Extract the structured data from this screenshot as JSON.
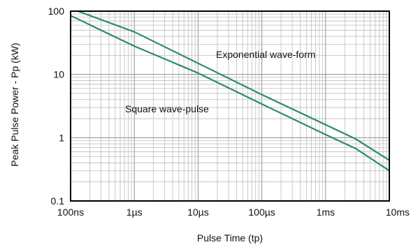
{
  "chart_data": {
    "type": "line",
    "title": "",
    "xlabel": "Pulse Time (tp)",
    "ylabel": "Peak Pulse Power - Pp (kW)",
    "x_scale": "log",
    "y_scale": "log",
    "x_unit": "seconds",
    "y_unit": "kW",
    "xlim": [
      1e-07,
      0.01
    ],
    "ylim": [
      0.1,
      100
    ],
    "grid": true,
    "x_ticks": [
      {
        "value": 1e-07,
        "label": "100ns"
      },
      {
        "value": 1e-06,
        "label": "1µs"
      },
      {
        "value": 1e-05,
        "label": "10µs"
      },
      {
        "value": 0.0001,
        "label": "100µs"
      },
      {
        "value": 0.001,
        "label": "1ms"
      },
      {
        "value": 0.01,
        "label": "10ms"
      }
    ],
    "y_ticks": [
      {
        "value": 100,
        "label": "100"
      },
      {
        "value": 10,
        "label": "10"
      },
      {
        "value": 1,
        "label": "1"
      },
      {
        "value": 0.1,
        "label": "0.1"
      }
    ],
    "series_color": "#2e8b6c",
    "series": [
      {
        "name": "Exponential wave-form",
        "x": [
          1.3e-07,
          1e-06,
          1e-05,
          0.0001,
          0.001,
          0.003,
          0.01
        ],
        "y": [
          100,
          47,
          15,
          4.8,
          1.6,
          0.95,
          0.44
        ]
      },
      {
        "name": "Square wave-pulse",
        "x": [
          1e-07,
          1e-06,
          1e-05,
          0.0001,
          0.001,
          0.003,
          0.01
        ],
        "y": [
          85,
          28,
          10.5,
          3.4,
          1.12,
          0.67,
          0.3
        ]
      }
    ],
    "annotations": [
      {
        "text": "Exponential wave-form",
        "series": 0
      },
      {
        "text": "Square wave-pulse",
        "series": 1
      }
    ]
  }
}
